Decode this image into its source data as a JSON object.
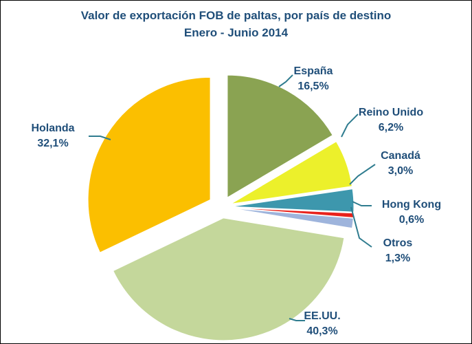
{
  "chart_data": {
    "type": "pie",
    "title": "Valor de exportación FOB de paltas, por país de destino",
    "subtitle": "Enero - Junio 2014",
    "slices": [
      {
        "name": "España",
        "label": "16,5%",
        "value": 16.5,
        "color": "#8aa352"
      },
      {
        "name": "Reino Unido",
        "label": "6,2%",
        "value": 6.2,
        "color": "#ecf02b"
      },
      {
        "name": "Canadá",
        "label": "3,0%",
        "value": 3.0,
        "color": "#3d97ad"
      },
      {
        "name": "Hong Kong",
        "label": "0,6%",
        "value": 0.6,
        "color": "#e8221c"
      },
      {
        "name": "Otros",
        "label": "1,3%",
        "value": 1.3,
        "color": "#9eb4dc"
      },
      {
        "name": "EE.UU.",
        "label": "40,3%",
        "value": 40.3,
        "color": "#c4d79b"
      },
      {
        "name": "Holanda",
        "label": "32,1%",
        "value": 32.1,
        "color": "#fbbf00"
      }
    ],
    "label_color": "#1f4e79",
    "leader_color": "#2f7c8f"
  }
}
